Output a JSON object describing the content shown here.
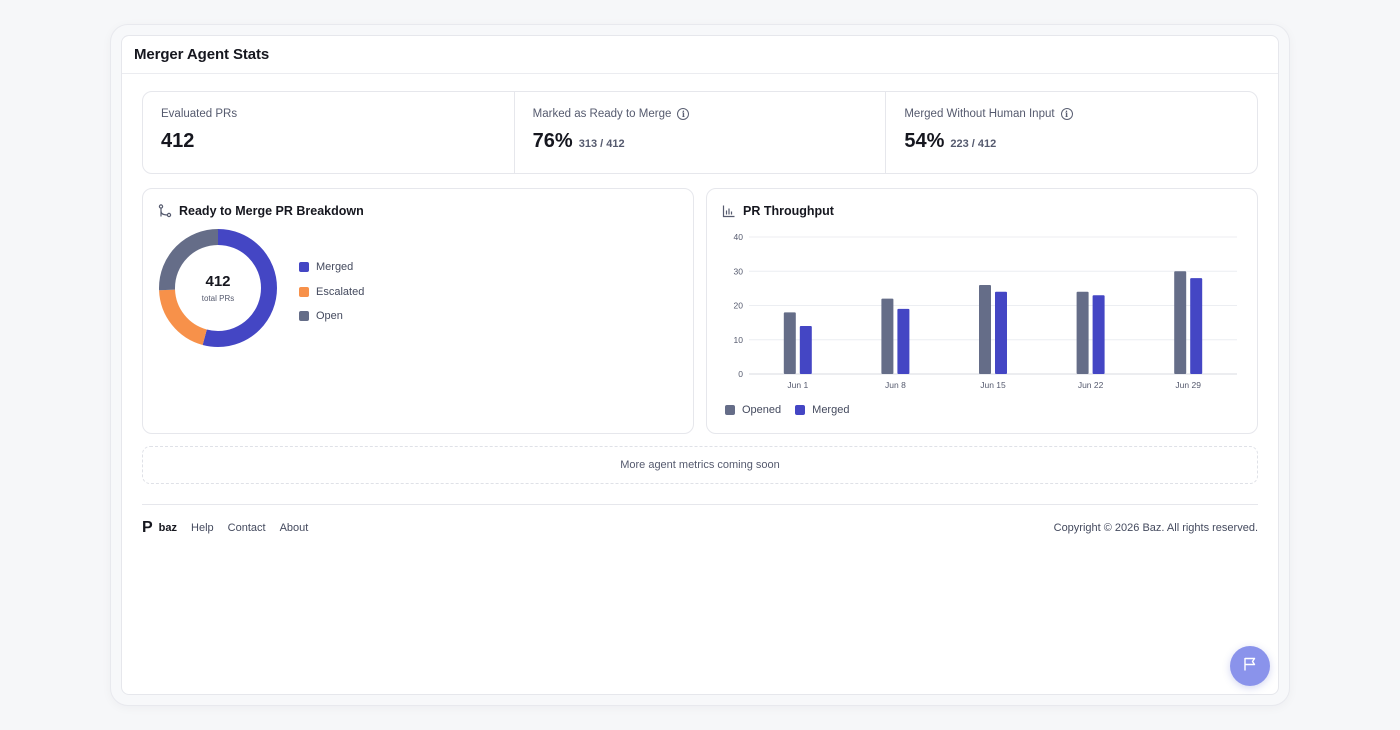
{
  "panel": {
    "title": "Merger Agent Stats"
  },
  "stats": [
    {
      "label": "Evaluated PRs",
      "value": "412",
      "sub": "",
      "info": false
    },
    {
      "label": "Marked as Ready to Merge",
      "value": "76%",
      "sub": "313 / 412",
      "info": true
    },
    {
      "label": "Merged Without Human Input",
      "value": "54%",
      "sub": "223 / 412",
      "info": true
    }
  ],
  "breakdown": {
    "title": "Ready to Merge PR Breakdown",
    "total": "412",
    "caption": "total PRs",
    "legend": [
      "Merged",
      "Escalated",
      "Open"
    ]
  },
  "throughput": {
    "title": "PR Throughput"
  },
  "chart_data": [
    {
      "type": "pie",
      "title": "Ready to Merge PR Breakdown",
      "categories": [
        "Merged",
        "Escalated",
        "Open"
      ],
      "values": [
        223,
        83,
        106
      ],
      "colors": [
        "#4446c4",
        "#f7914a",
        "#656d88"
      ],
      "donut": true
    },
    {
      "type": "bar",
      "title": "PR Throughput",
      "categories": [
        "Jun 1",
        "Jun 8",
        "Jun 15",
        "Jun 22",
        "Jun 29"
      ],
      "series": [
        {
          "name": "Opened",
          "values": [
            18,
            22,
            26,
            24,
            30
          ],
          "color": "#656d88"
        },
        {
          "name": "Merged",
          "values": [
            14,
            19,
            24,
            23,
            28
          ],
          "color": "#4446c4"
        }
      ],
      "ylim": [
        0,
        40
      ],
      "yticks": [
        0,
        10,
        20,
        30,
        40
      ],
      "grid": true,
      "legend": "bottom-left"
    }
  ],
  "coming_soon": "More agent metrics coming soon",
  "footer": {
    "logo": "P",
    "brand": "baz",
    "links": [
      "Help",
      "Contact",
      "About"
    ],
    "copyright": "Copyright © 2026 Baz. All rights reserved."
  },
  "icons": {
    "info": "info-icon",
    "breakdown": "git-merge-icon",
    "throughput": "bar-chart-icon",
    "fab": "flag-icon"
  }
}
